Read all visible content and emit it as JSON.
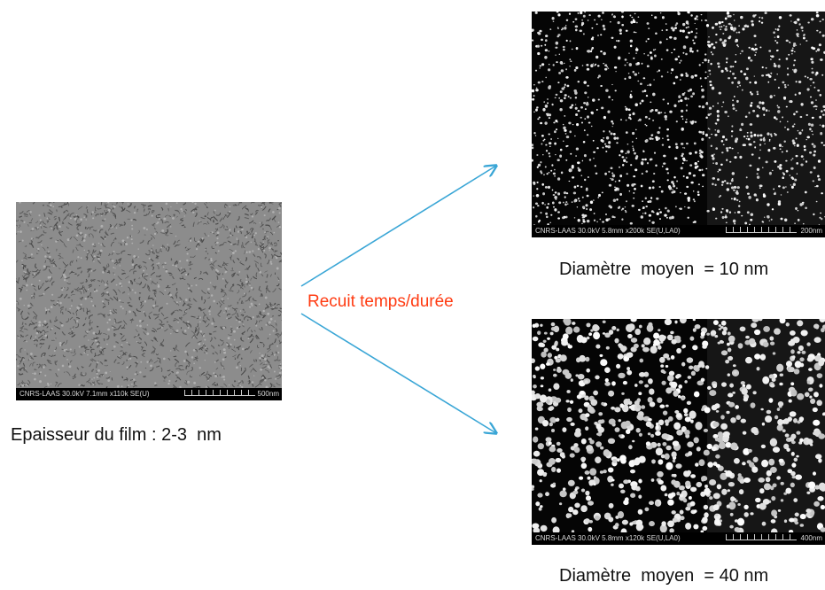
{
  "left_image": {
    "meta": "CNRS-LAAS 30.0kV 7.1mm x110k SE(U)",
    "scale": "500nm",
    "caption": "Epaisseur du film : 2-3  nm"
  },
  "arrow_label": "Recuit temps/durée",
  "top_right_image": {
    "meta": "CNRS-LAAS 30.0kV 5.8mm x200k SE(U,LA0)",
    "scale": "200nm",
    "caption": "Diamètre  moyen  = 10 nm"
  },
  "bottom_right_image": {
    "meta": "CNRS-LAAS 30.0kV 5.8mm x120k SE(U,LA0)",
    "scale": "400nm",
    "caption": "Diamètre  moyen  = 40 nm"
  },
  "colors": {
    "arrow": "#3aa6d6",
    "label": "#ff3b12",
    "film": "#8a8a8a"
  }
}
